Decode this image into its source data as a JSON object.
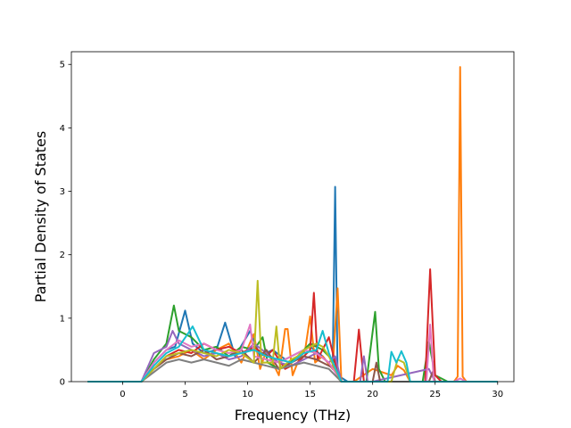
{
  "chart_data": {
    "type": "line",
    "title": "",
    "xlabel": "Frequency (THz)",
    "ylabel": "Partial Density of States",
    "xlim": [
      -4.1,
      31.3
    ],
    "ylim": [
      0,
      5.2
    ],
    "xticks": [
      0,
      5,
      10,
      15,
      20,
      25,
      30
    ],
    "yticks": [
      0,
      1,
      2,
      3,
      4,
      5
    ],
    "xtick_labels": [
      "0",
      "5",
      "10",
      "15",
      "20",
      "25",
      "30"
    ],
    "ytick_labels": [
      "0",
      "1",
      "2",
      "3",
      "4",
      "5"
    ],
    "grid": false,
    "legend": "none",
    "line_colors": [
      "#1f77b4",
      "#ff7f0e",
      "#2ca02c",
      "#d62728",
      "#9467bd",
      "#8c564b",
      "#e377c2",
      "#7f7f7f",
      "#bcbd22",
      "#17becf"
    ],
    "series": [
      {
        "color": "#1f77b4",
        "x": [
          -2.8,
          1.5,
          2.5,
          3.5,
          4.2,
          5.0,
          5.6,
          6.5,
          7.5,
          8.2,
          9.0,
          10.2,
          11.0,
          12.0,
          13.0,
          14.0,
          15.0,
          16.0,
          16.8,
          17.0,
          17.2,
          18.0,
          20.0,
          22.0,
          24.0,
          26.0,
          27.0,
          28.0,
          30.0
        ],
        "y": [
          0,
          0,
          0.3,
          0.5,
          0.55,
          1.12,
          0.6,
          0.45,
          0.5,
          0.93,
          0.4,
          0.8,
          0.4,
          0.5,
          0.35,
          0.45,
          0.55,
          0.4,
          0.2,
          3.07,
          0.1,
          0,
          0,
          0,
          0,
          0,
          0,
          0,
          0
        ]
      },
      {
        "color": "#ff7f0e",
        "x": [
          -2.8,
          1.5,
          2.5,
          3.5,
          4.5,
          5.5,
          6.5,
          7.5,
          8.5,
          9.5,
          10.5,
          11.0,
          11.5,
          12.5,
          13.0,
          13.2,
          13.6,
          14.0,
          14.6,
          15.0,
          15.4,
          16.0,
          16.8,
          17.2,
          17.5,
          18.5,
          20.0,
          21.5,
          22.0,
          22.5,
          23.0,
          24.0,
          26.5,
          26.8,
          27.0,
          27.2,
          27.5,
          30.0
        ],
        "y": [
          0,
          0,
          0.2,
          0.35,
          0.4,
          0.5,
          0.35,
          0.5,
          0.6,
          0.3,
          0.75,
          0.2,
          0.5,
          0.1,
          0.83,
          0.83,
          0.1,
          0.3,
          0.5,
          1.03,
          0.3,
          0.4,
          0.2,
          1.47,
          0,
          0,
          0.2,
          0.1,
          0.25,
          0.18,
          0,
          0,
          0,
          0.08,
          4.96,
          0.08,
          0,
          0
        ]
      },
      {
        "color": "#2ca02c",
        "x": [
          -2.8,
          1.5,
          2.5,
          3.5,
          4.1,
          4.5,
          5.5,
          6.5,
          7.5,
          8.5,
          9.5,
          10.5,
          11.2,
          11.6,
          12.5,
          14.0,
          15.0,
          16.0,
          17.0,
          17.5,
          19.5,
          20.2,
          20.5,
          21.0,
          24.0,
          24.5,
          25.0,
          26.0,
          30.0
        ],
        "y": [
          0,
          0,
          0.35,
          0.6,
          1.2,
          0.8,
          0.7,
          0.5,
          0.55,
          0.4,
          0.55,
          0.5,
          0.7,
          0.3,
          0.2,
          0.4,
          0.6,
          0.5,
          0.3,
          0,
          0,
          1.1,
          0.2,
          0,
          0,
          0.63,
          0.1,
          0,
          0
        ]
      },
      {
        "color": "#d62728",
        "x": [
          -2.8,
          1.5,
          2.5,
          3.5,
          4.5,
          5.5,
          6.5,
          7.5,
          8.5,
          9.5,
          10.5,
          11.5,
          12.0,
          13.0,
          14.0,
          15.0,
          15.3,
          15.6,
          16.5,
          17.0,
          17.5,
          18.5,
          18.9,
          19.3,
          20.0,
          24.2,
          24.6,
          25.0,
          25.5,
          30.0
        ],
        "y": [
          0,
          0,
          0.2,
          0.4,
          0.5,
          0.45,
          0.6,
          0.5,
          0.55,
          0.45,
          0.55,
          0.4,
          0.5,
          0.2,
          0.3,
          0.5,
          1.4,
          0.35,
          0.7,
          0.3,
          0,
          0,
          0.82,
          0,
          0,
          0,
          1.77,
          0.1,
          0,
          0
        ]
      },
      {
        "color": "#9467bd",
        "x": [
          -2.8,
          1.5,
          2.5,
          3.5,
          4.0,
          4.5,
          5.5,
          6.5,
          7.5,
          8.5,
          9.5,
          10.5,
          11.5,
          12.5,
          13.5,
          14.5,
          15.5,
          16.5,
          17.0,
          17.5,
          19.0,
          19.3,
          19.6,
          20.0,
          24.5,
          25.0,
          30.0
        ],
        "y": [
          0,
          0,
          0.45,
          0.55,
          0.8,
          0.6,
          0.5,
          0.4,
          0.45,
          0.35,
          0.4,
          0.6,
          0.45,
          0.3,
          0.25,
          0.35,
          0.45,
          0.3,
          0.4,
          0,
          0,
          0.4,
          0,
          0,
          0.2,
          0,
          0
        ]
      },
      {
        "color": "#8c564b",
        "x": [
          -2.8,
          1.5,
          2.5,
          3.5,
          4.5,
          5.5,
          6.5,
          7.5,
          8.5,
          9.5,
          10.5,
          11.5,
          12.5,
          13.5,
          14.5,
          15.5,
          16.5,
          17.0,
          17.5,
          20.0,
          20.3,
          20.6,
          24.5,
          24.8,
          25.0,
          30.0
        ],
        "y": [
          0,
          0,
          0.2,
          0.35,
          0.45,
          0.4,
          0.5,
          0.35,
          0.4,
          0.5,
          0.3,
          0.5,
          0.2,
          0.3,
          0.4,
          0.35,
          0.25,
          0.2,
          0,
          0,
          0.3,
          0,
          0,
          0.15,
          0,
          0
        ]
      },
      {
        "color": "#e377c2",
        "x": [
          -2.8,
          1.5,
          2.5,
          3.5,
          4.5,
          5.5,
          6.5,
          7.5,
          8.5,
          9.5,
          10.2,
          10.5,
          11.5,
          12.5,
          13.5,
          14.5,
          15.5,
          16.5,
          17.5,
          24.3,
          24.6,
          24.9,
          26.5,
          27.0,
          27.5,
          30.0
        ],
        "y": [
          0,
          0,
          0.3,
          0.5,
          0.65,
          0.55,
          0.6,
          0.5,
          0.45,
          0.5,
          0.9,
          0.4,
          0.35,
          0.3,
          0.4,
          0.5,
          0.45,
          0.3,
          0,
          0,
          0.9,
          0,
          0,
          0.05,
          0,
          0
        ]
      },
      {
        "color": "#7f7f7f",
        "x": [
          -2.8,
          1.5,
          2.5,
          3.5,
          4.5,
          5.5,
          6.5,
          7.5,
          8.5,
          9.5,
          10.5,
          11.5,
          12.5,
          13.5,
          14.5,
          15.5,
          16.5,
          17.5,
          30.0
        ],
        "y": [
          0,
          0,
          0.15,
          0.3,
          0.35,
          0.3,
          0.35,
          0.3,
          0.25,
          0.35,
          0.3,
          0.25,
          0.2,
          0.25,
          0.3,
          0.25,
          0.2,
          0,
          0
        ]
      },
      {
        "color": "#bcbd22",
        "x": [
          -2.8,
          1.5,
          2.5,
          3.5,
          4.5,
          5.5,
          6.5,
          7.5,
          8.5,
          9.5,
          10.5,
          10.8,
          11.1,
          12.0,
          12.3,
          12.6,
          13.5,
          14.0,
          14.5,
          15.5,
          16.0,
          16.5,
          17.5,
          21.5,
          22.0,
          22.5,
          23.0,
          30.0
        ],
        "y": [
          0,
          0,
          0.2,
          0.4,
          0.45,
          0.5,
          0.45,
          0.4,
          0.5,
          0.45,
          0.3,
          1.59,
          0.3,
          0.3,
          0.87,
          0.2,
          0.35,
          0.4,
          0.5,
          0.6,
          0.55,
          0.4,
          0,
          0,
          0.35,
          0.3,
          0,
          0
        ]
      },
      {
        "color": "#17becf",
        "x": [
          -2.8,
          1.5,
          2.5,
          3.5,
          4.5,
          5.2,
          5.6,
          6.5,
          7.5,
          8.5,
          9.5,
          10.5,
          11.5,
          12.5,
          13.5,
          14.5,
          15.5,
          16.0,
          16.5,
          17.5,
          21.2,
          21.5,
          21.9,
          22.3,
          22.7,
          23.0,
          30.0
        ],
        "y": [
          0,
          0,
          0.25,
          0.45,
          0.55,
          0.75,
          0.87,
          0.5,
          0.45,
          0.4,
          0.45,
          0.5,
          0.4,
          0.35,
          0.3,
          0.45,
          0.5,
          0.8,
          0.45,
          0,
          0,
          0.47,
          0.3,
          0.48,
          0.3,
          0,
          0
        ]
      }
    ]
  }
}
